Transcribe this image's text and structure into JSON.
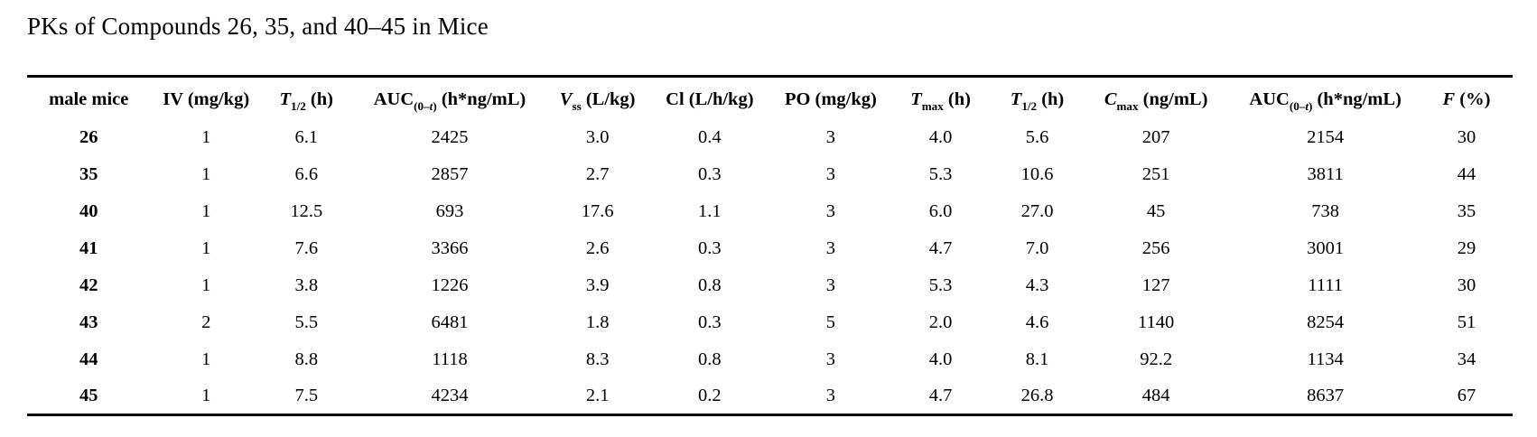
{
  "page": {
    "background_color": "#ffffff",
    "text_color": "#000000",
    "rule_color": "#000000"
  },
  "title": "PKs of Compounds 26, 35, and 40–45 in Mice",
  "table": {
    "col_widths": [
      "8.3%",
      "7.5%",
      "6.0%",
      "13.3%",
      "6.6%",
      "8.5%",
      "7.8%",
      "7.0%",
      "6.0%",
      "10.0%",
      "12.8%",
      "6.2%"
    ],
    "columns": [
      {
        "name": "male-mice",
        "parts": [
          {
            "t": "male mice"
          }
        ]
      },
      {
        "name": "iv-dose",
        "parts": [
          {
            "t": "IV (mg/kg)"
          }
        ]
      },
      {
        "name": "t-half-iv",
        "parts": [
          {
            "t": "T",
            "i": true
          },
          {
            "t": "1/2",
            "s": true
          },
          {
            "t": " (h)"
          }
        ]
      },
      {
        "name": "auc-iv",
        "parts": [
          {
            "t": "AUC"
          },
          {
            "t": "(0–",
            "s": true
          },
          {
            "t": "t",
            "s": true,
            "i": true
          },
          {
            "t": ")",
            "s": true
          },
          {
            "t": " (h*ng/mL)"
          }
        ]
      },
      {
        "name": "vss",
        "parts": [
          {
            "t": "V",
            "i": true
          },
          {
            "t": "ss",
            "s": true
          },
          {
            "t": " (L/kg)"
          }
        ]
      },
      {
        "name": "cl",
        "parts": [
          {
            "t": "Cl (L/h/kg)"
          }
        ]
      },
      {
        "name": "po-dose",
        "parts": [
          {
            "t": "PO (mg/kg)"
          }
        ]
      },
      {
        "name": "tmax",
        "parts": [
          {
            "t": "T",
            "i": true
          },
          {
            "t": "max",
            "s": true
          },
          {
            "t": " (h)"
          }
        ]
      },
      {
        "name": "t-half-po",
        "parts": [
          {
            "t": "T",
            "i": true
          },
          {
            "t": "1/2",
            "s": true
          },
          {
            "t": " (h)"
          }
        ]
      },
      {
        "name": "cmax",
        "parts": [
          {
            "t": "C",
            "i": true
          },
          {
            "t": "max",
            "s": true
          },
          {
            "t": " (ng/mL)"
          }
        ]
      },
      {
        "name": "auc-po",
        "parts": [
          {
            "t": "AUC"
          },
          {
            "t": "(0–",
            "s": true
          },
          {
            "t": "t",
            "s": true,
            "i": true
          },
          {
            "t": ")",
            "s": true
          },
          {
            "t": " (h*ng/mL)"
          }
        ]
      },
      {
        "name": "f-percent",
        "parts": [
          {
            "t": "F",
            "i": true
          },
          {
            "t": " (%)"
          }
        ]
      }
    ],
    "rows": [
      {
        "compound": "26",
        "cells": [
          "1",
          "6.1",
          "2425",
          "3.0",
          "0.4",
          "3",
          "4.0",
          "5.6",
          "207",
          "2154",
          "30"
        ]
      },
      {
        "compound": "35",
        "cells": [
          "1",
          "6.6",
          "2857",
          "2.7",
          "0.3",
          "3",
          "5.3",
          "10.6",
          "251",
          "3811",
          "44"
        ]
      },
      {
        "compound": "40",
        "cells": [
          "1",
          "12.5",
          "693",
          "17.6",
          "1.1",
          "3",
          "6.0",
          "27.0",
          "45",
          "738",
          "35"
        ]
      },
      {
        "compound": "41",
        "cells": [
          "1",
          "7.6",
          "3366",
          "2.6",
          "0.3",
          "3",
          "4.7",
          "7.0",
          "256",
          "3001",
          "29"
        ]
      },
      {
        "compound": "42",
        "cells": [
          "1",
          "3.8",
          "1226",
          "3.9",
          "0.8",
          "3",
          "5.3",
          "4.3",
          "127",
          "1111",
          "30"
        ]
      },
      {
        "compound": "43",
        "cells": [
          "2",
          "5.5",
          "6481",
          "1.8",
          "0.3",
          "5",
          "2.0",
          "4.6",
          "1140",
          "8254",
          "51"
        ]
      },
      {
        "compound": "44",
        "cells": [
          "1",
          "8.8",
          "1118",
          "8.3",
          "0.8",
          "3",
          "4.0",
          "8.1",
          "92.2",
          "1134",
          "34"
        ]
      },
      {
        "compound": "45",
        "cells": [
          "1",
          "7.5",
          "4234",
          "2.1",
          "0.2",
          "3",
          "4.7",
          "26.8",
          "484",
          "8637",
          "67"
        ]
      }
    ]
  }
}
